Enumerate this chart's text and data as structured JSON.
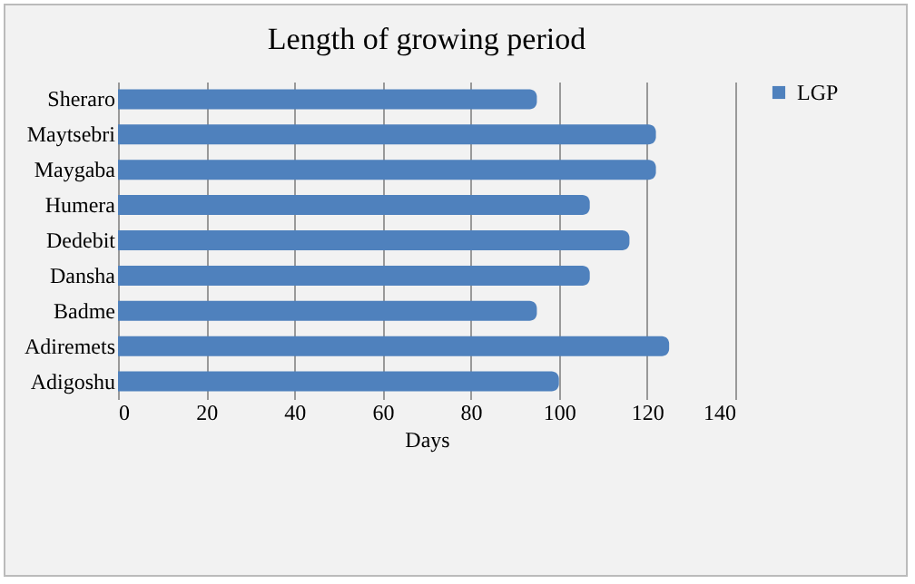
{
  "chart_data": {
    "type": "bar",
    "orientation": "horizontal",
    "title": "Length of growing period",
    "xlabel": "Days",
    "categories": [
      "Sheraro",
      "Maytsebri",
      "Maygaba",
      "Humera",
      "Dedebit",
      "Dansha",
      "Badme",
      "Adiremets",
      "Adigoshu"
    ],
    "series": [
      {
        "name": "LGP",
        "color": "#4f81bd",
        "values": [
          95,
          122,
          122,
          107,
          116,
          107,
          95,
          125,
          100
        ]
      }
    ],
    "xlim": [
      0,
      140
    ],
    "xticks": [
      0,
      20,
      40,
      60,
      80,
      100,
      120,
      140
    ],
    "grid": "x",
    "legend": "right"
  }
}
